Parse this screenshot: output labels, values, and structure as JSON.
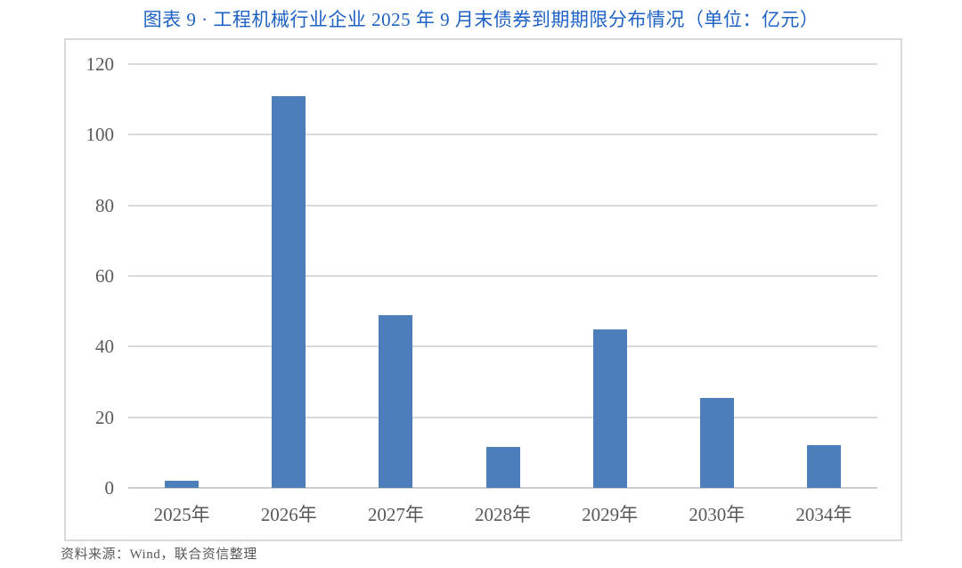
{
  "page": {
    "title": "图表 9 · 工程机械行业企业 2025 年 9 月末债券到期期限分布情况（单位：亿元）",
    "source_note": "资料来源：Wind，联合资信整理"
  },
  "colors": {
    "title": "#1E62C5",
    "bar": "#4D7EBC",
    "gridline": "#D9D9D9",
    "axis_line": "#CFCDCD",
    "tick_label": "#595959",
    "chart_border": "#D9D9D9",
    "source_text": "#595959"
  },
  "chart_data": {
    "type": "bar",
    "title": "图表 9 · 工程机械行业企业 2025 年 9 月末债券到期期限分布情况（单位：亿元）",
    "unit": "亿元",
    "categories": [
      "2025年",
      "2026年",
      "2027年",
      "2028年",
      "2029年",
      "2030年",
      "2034年"
    ],
    "values": [
      2,
      111,
      49,
      11.5,
      45,
      25.5,
      12
    ],
    "xlabel": "",
    "ylabel": "",
    "ylim": [
      0,
      120
    ],
    "yticks": [
      0,
      20,
      40,
      60,
      80,
      100,
      120
    ],
    "grid": true,
    "legend": "none",
    "source": "资料来源：Wind，联合资信整理"
  }
}
